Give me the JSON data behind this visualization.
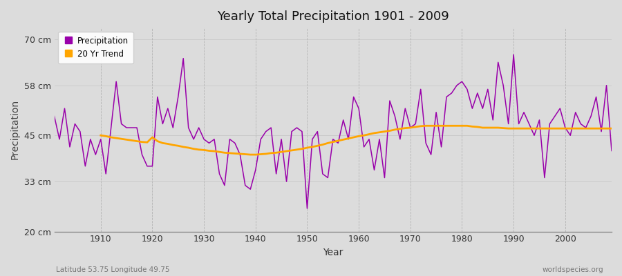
{
  "title": "Yearly Total Precipitation 1901 - 2009",
  "xlabel": "Year",
  "ylabel": "Precipitation",
  "subtitle_left": "Latitude 53.75 Longitude 49.75",
  "subtitle_right": "worldspecies.org",
  "bg_color": "#dcdcdc",
  "plot_bg_color": "#dcdcdc",
  "precip_color": "#9900aa",
  "trend_color": "#ffa500",
  "ylim": [
    20,
    73
  ],
  "yticks": [
    20,
    33,
    45,
    58,
    70
  ],
  "ytick_labels": [
    "20 cm",
    "33 cm",
    "45 cm",
    "58 cm",
    "70 cm"
  ],
  "years": [
    1901,
    1902,
    1903,
    1904,
    1905,
    1906,
    1907,
    1908,
    1909,
    1910,
    1911,
    1912,
    1913,
    1914,
    1915,
    1916,
    1917,
    1918,
    1919,
    1920,
    1921,
    1922,
    1923,
    1924,
    1925,
    1926,
    1927,
    1928,
    1929,
    1930,
    1931,
    1932,
    1933,
    1934,
    1935,
    1936,
    1937,
    1938,
    1939,
    1940,
    1941,
    1942,
    1943,
    1944,
    1945,
    1946,
    1947,
    1948,
    1949,
    1950,
    1951,
    1952,
    1953,
    1954,
    1955,
    1956,
    1957,
    1958,
    1959,
    1960,
    1961,
    1962,
    1963,
    1964,
    1965,
    1966,
    1967,
    1968,
    1969,
    1970,
    1971,
    1972,
    1973,
    1974,
    1975,
    1976,
    1977,
    1978,
    1979,
    1980,
    1981,
    1982,
    1983,
    1984,
    1985,
    1986,
    1987,
    1988,
    1989,
    1990,
    1991,
    1992,
    1993,
    1994,
    1995,
    1996,
    1997,
    1998,
    1999,
    2000,
    2001,
    2002,
    2003,
    2004,
    2005,
    2006,
    2007,
    2008,
    2009
  ],
  "precip": [
    50,
    44,
    52,
    42,
    48,
    46,
    37,
    44,
    40,
    44,
    35,
    47,
    59,
    48,
    47,
    47,
    47,
    40,
    37,
    37,
    55,
    48,
    52,
    47,
    55,
    65,
    47,
    44,
    47,
    44,
    43,
    44,
    35,
    32,
    44,
    43,
    40,
    32,
    31,
    36,
    44,
    46,
    47,
    35,
    44,
    33,
    46,
    47,
    46,
    26,
    44,
    46,
    35,
    34,
    44,
    43,
    49,
    44,
    55,
    52,
    42,
    44,
    36,
    44,
    34,
    54,
    50,
    44,
    52,
    47,
    48,
    57,
    43,
    40,
    51,
    42,
    55,
    56,
    58,
    59,
    57,
    52,
    56,
    52,
    57,
    49,
    64,
    58,
    48,
    66,
    48,
    51,
    48,
    45,
    49,
    34,
    48,
    50,
    52,
    47,
    45,
    51,
    48,
    47,
    50,
    55,
    46,
    58,
    41
  ],
  "trend": [
    null,
    null,
    null,
    null,
    null,
    null,
    null,
    null,
    null,
    45.0,
    44.8,
    44.5,
    44.3,
    44.1,
    43.9,
    43.7,
    43.5,
    43.3,
    43.2,
    44.5,
    43.5,
    43.0,
    42.8,
    42.5,
    42.3,
    42.0,
    41.8,
    41.5,
    41.3,
    41.2,
    41.0,
    40.9,
    40.7,
    40.5,
    40.4,
    40.3,
    40.2,
    40.1,
    40.0,
    40.0,
    40.1,
    40.2,
    40.4,
    40.5,
    40.7,
    40.9,
    41.1,
    41.3,
    41.5,
    41.8,
    42.0,
    42.3,
    42.6,
    43.0,
    43.3,
    43.6,
    43.9,
    44.2,
    44.5,
    44.8,
    45.0,
    45.3,
    45.6,
    45.8,
    46.0,
    46.2,
    46.5,
    46.7,
    46.9,
    47.0,
    47.2,
    47.4,
    47.5,
    47.5,
    47.5,
    47.5,
    47.5,
    47.5,
    47.5,
    47.5,
    47.5,
    47.3,
    47.2,
    47.0,
    47.0,
    47.0,
    47.0,
    46.9,
    46.8,
    46.8,
    46.8,
    46.8,
    46.8,
    46.8,
    46.8,
    46.8,
    46.8,
    46.8,
    46.8,
    46.8,
    46.8,
    46.8,
    46.8,
    46.8,
    46.8,
    46.8,
    46.8,
    46.8,
    46.8
  ]
}
